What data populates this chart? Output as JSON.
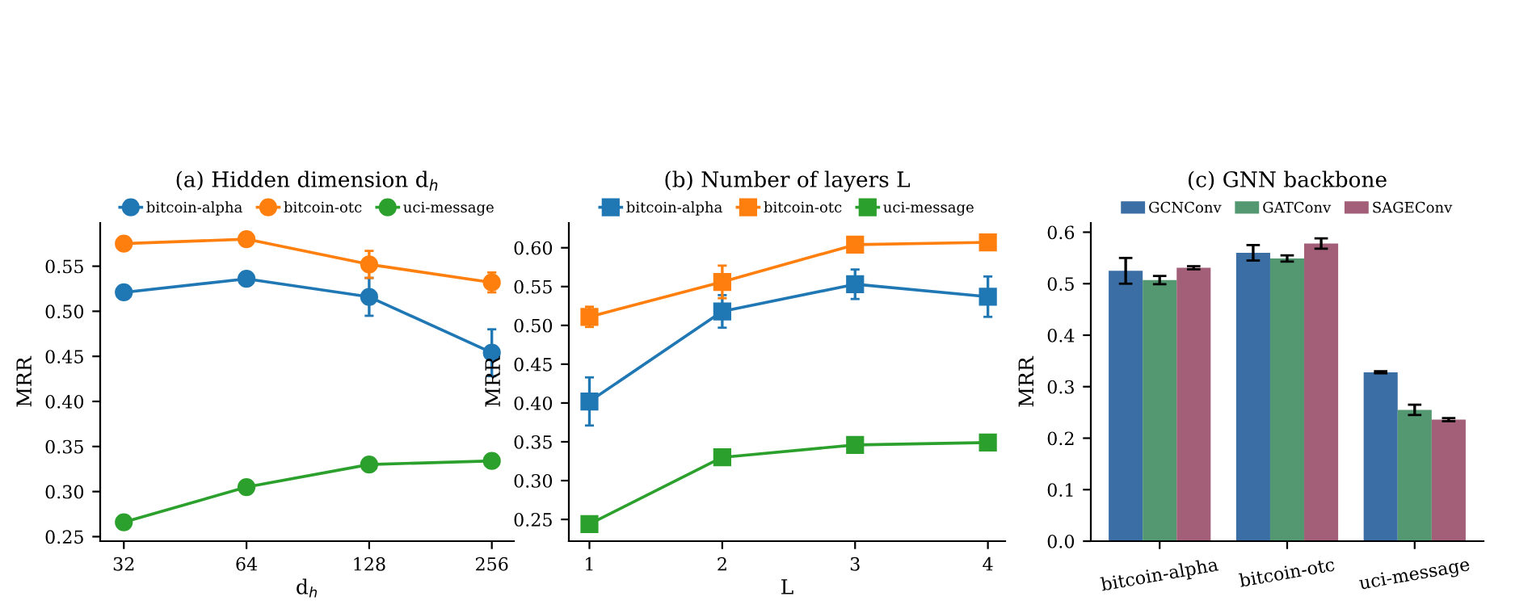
{
  "chart_data": [
    {
      "type": "line",
      "title": "(a) Hidden dimension d$_{h}$",
      "xlabel": "d$_{h}$",
      "ylabel": "MRR",
      "x": [
        32,
        64,
        128,
        256
      ],
      "log": "x",
      "xlim": [
        28,
        290
      ],
      "xticks": [
        32,
        64,
        128,
        256
      ],
      "ylim": [
        0.245,
        0.598
      ],
      "yticks": [
        0.25,
        {
          "value": 0.3,
          "label": "0.30"
        },
        0.35,
        {
          "value": 0.4,
          "label": "0.40"
        },
        0.45,
        {
          "value": 0.5,
          "label": "0.50"
        },
        0.55
      ],
      "marker": "circle",
      "legend": "top",
      "grid": false,
      "series": [
        {
          "name": "bitcoin-alpha",
          "color": "#1f77b4",
          "values": [
            0.521,
            0.536,
            0.516,
            0.454
          ],
          "errors": [
            null,
            null,
            0.021,
            0.026
          ]
        },
        {
          "name": "bitcoin-otc",
          "color": "#ff7f0e",
          "values": [
            0.575,
            0.58,
            0.552,
            0.532
          ],
          "errors": [
            null,
            null,
            0.015,
            0.011
          ]
        },
        {
          "name": "uci-message",
          "color": "#2ca02c",
          "values": [
            0.266,
            0.305,
            0.33,
            0.334
          ],
          "errors": [
            null,
            0.005,
            null,
            null
          ]
        }
      ]
    },
    {
      "type": "line",
      "title": "(b) Number of layers L",
      "xlabel": "L",
      "ylabel": "MRR",
      "x": [
        1,
        2,
        3,
        4
      ],
      "xlim": [
        0.845,
        4.13
      ],
      "xticks": [
        1,
        2,
        3,
        4
      ],
      "ylim": [
        0.222,
        0.632
      ],
      "yticks": [
        0.25,
        {
          "value": 0.3,
          "label": "0.30"
        },
        0.35,
        {
          "value": 0.4,
          "label": "0.40"
        },
        0.45,
        {
          "value": 0.5,
          "label": "0.50"
        },
        0.55,
        {
          "value": 0.6,
          "label": "0.60"
        }
      ],
      "marker": "square",
      "legend": "top",
      "grid": false,
      "series": [
        {
          "name": "bitcoin-alpha",
          "color": "#1f77b4",
          "values": [
            0.402,
            0.518,
            0.553,
            0.537
          ],
          "errors": [
            0.031,
            0.021,
            0.019,
            0.026
          ]
        },
        {
          "name": "bitcoin-otc",
          "color": "#ff7f0e",
          "values": [
            0.511,
            0.556,
            0.604,
            0.607
          ],
          "errors": [
            0.013,
            0.021,
            null,
            null
          ]
        },
        {
          "name": "uci-message",
          "color": "#2ca02c",
          "values": [
            0.244,
            0.33,
            0.346,
            0.349
          ],
          "errors": [
            null,
            null,
            null,
            null
          ]
        }
      ]
    },
    {
      "type": "bar",
      "title": "(c) GNN backbone",
      "ylabel": "MRR",
      "categories": [
        "bitcoin-alpha",
        "bitcoin-otc",
        "uci-message"
      ],
      "ylim": [
        0,
        0.618
      ],
      "yticks": [
        {
          "value": 0,
          "label": "0.0"
        },
        0.1,
        0.2,
        0.3,
        0.4,
        0.5,
        0.6
      ],
      "legend": "top",
      "grid": false,
      "series": [
        {
          "name": "GCNConv",
          "color": "#3b6ea5",
          "values": [
            0.525,
            0.56,
            0.328
          ],
          "errors": [
            0.025,
            0.015,
            0.002
          ]
        },
        {
          "name": "GATConv",
          "color": "#539870",
          "values": [
            0.507,
            0.549,
            0.255
          ],
          "errors": [
            0.008,
            0.006,
            0.01
          ]
        },
        {
          "name": "SAGEConv",
          "color": "#a35e78",
          "values": [
            0.531,
            0.578,
            0.236
          ],
          "errors": [
            0.003,
            0.01,
            0.003
          ]
        }
      ]
    }
  ]
}
